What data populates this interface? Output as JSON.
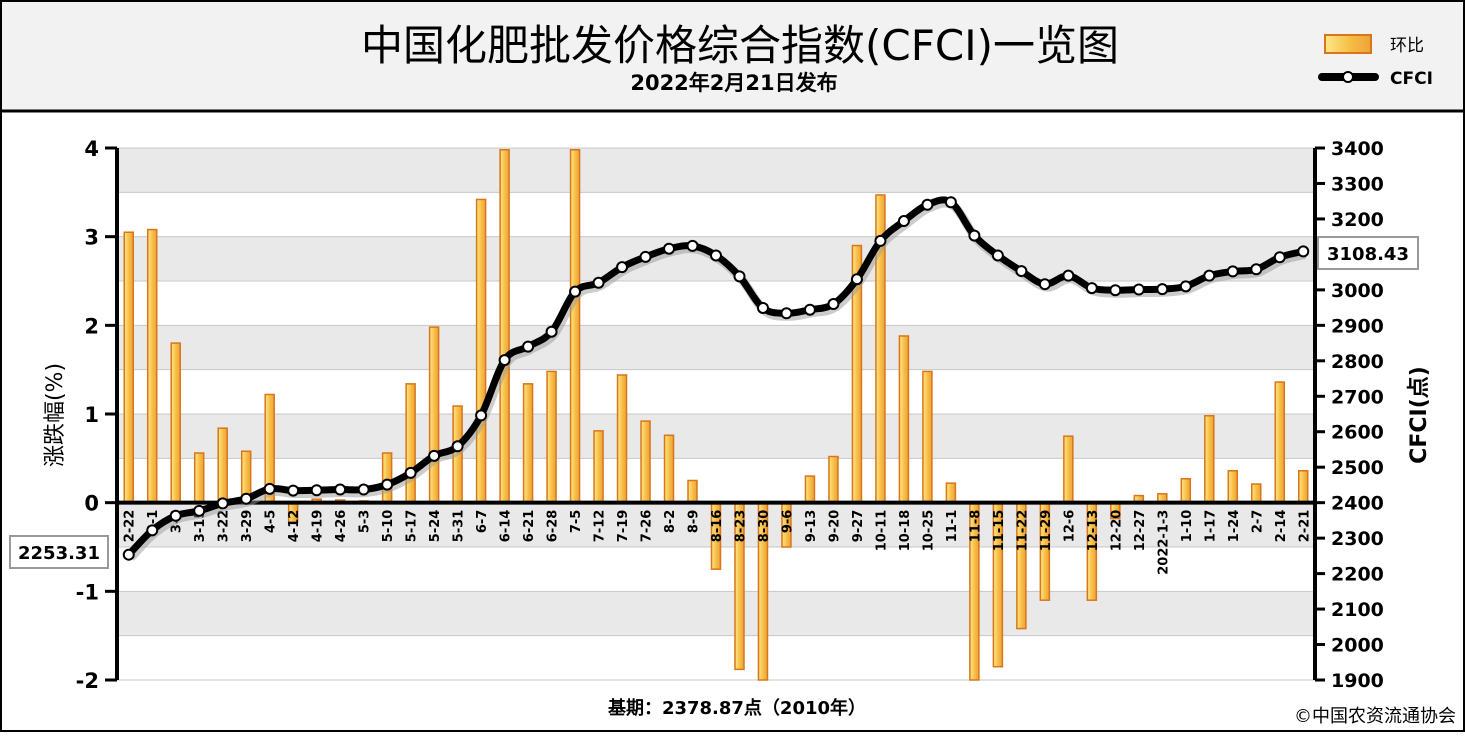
{
  "header": {
    "title": "中国化肥批发价格综合指数(CFCI)一览图",
    "subtitle": "2022年2月21日发布"
  },
  "legend": {
    "bar_label": "环比",
    "line_label": "CFCI",
    "placement": "top-right"
  },
  "footer": {
    "base_note": "基期：2378.87点（2010年）",
    "copyright": "©中国农资流通协会"
  },
  "colors": {
    "bar_fill": "#f5b942",
    "bar_edge": "#d9751a",
    "line": "#000000",
    "plot_bg_band": "#e9e9e9",
    "header_bg": "#f2f2f2"
  },
  "chart_data": {
    "type": "bar",
    "title": "中国化肥批发价格综合指数(CFCI)一览图",
    "ylabel": "涨跌幅(%)",
    "ylabel_right": "CFCI(点)",
    "ylim": [
      -2,
      4
    ],
    "ylim_right": [
      1900,
      3400
    ],
    "yticks": [
      -2,
      -1,
      0,
      1,
      2,
      3,
      4
    ],
    "yticks_right": [
      1900,
      2000,
      2100,
      2200,
      2300,
      2400,
      2500,
      2600,
      2700,
      2800,
      2900,
      3000,
      3100,
      3200,
      3300,
      3400
    ],
    "grid": true,
    "categories": [
      "2-22",
      "3-1",
      "3-8",
      "3-15",
      "3-22",
      "3-29",
      "4-5",
      "4-12",
      "4-19",
      "4-26",
      "5-3",
      "5-10",
      "5-17",
      "5-24",
      "5-31",
      "6-7",
      "6-14",
      "6-21",
      "6-28",
      "7-5",
      "7-12",
      "7-19",
      "7-26",
      "8-2",
      "8-9",
      "8-16",
      "8-23",
      "8-30",
      "9-6",
      "9-13",
      "9-20",
      "9-27",
      "10-11",
      "10-18",
      "10-25",
      "11-1",
      "11-8",
      "11-15",
      "11-22",
      "11-29",
      "12-6",
      "12-13",
      "12-20",
      "12-27",
      "2022-1-3",
      "1-10",
      "1-17",
      "1-24",
      "2-7",
      "2-14",
      "2-21"
    ],
    "tick_labels": [
      "2-22",
      "3-1",
      "3-8",
      "3-15",
      "3-22",
      "3-29",
      "4-5",
      "4-12",
      "4-19",
      "4-26",
      "5-3",
      "5-10",
      "5-17",
      "5-24",
      "5-31",
      "6-7",
      "6-14",
      "6-21",
      "6-28",
      "7-5",
      "7-12",
      "7-19",
      "7-26",
      "8-2",
      "8-9",
      "8-16",
      "8-23",
      "8-30",
      "9-6",
      "9-13",
      "9-20",
      "9-27",
      "10-11",
      "10-18",
      "10-25",
      "11-1",
      "11-8",
      "11-15",
      "11-22",
      "11-29",
      "12-6",
      "12-13",
      "12-20",
      "12-27",
      "2022-1-3",
      "1-10",
      "1-17",
      "1-24",
      "2-7",
      "2-14",
      "2-21"
    ],
    "series": [
      {
        "name": "环比",
        "type": "bar",
        "axis": "left",
        "values": [
          3.05,
          3.08,
          1.8,
          0.56,
          0.84,
          0.58,
          1.22,
          -0.22,
          0.04,
          0.03,
          0.02,
          0.56,
          1.34,
          1.98,
          1.09,
          3.42,
          3.98,
          1.34,
          1.48,
          3.98,
          0.81,
          1.44,
          0.92,
          0.76,
          0.25,
          -0.75,
          -1.88,
          -2.0,
          -0.5,
          0.3,
          0.52,
          2.9,
          3.47,
          1.88,
          1.48,
          0.22,
          -2.0,
          -1.85,
          -1.42,
          -1.1,
          0.75,
          -1.1,
          -0.18,
          0.08,
          0.1,
          0.27,
          0.98,
          0.36,
          0.21,
          1.36,
          0.36
        ]
      },
      {
        "name": "CFCI",
        "type": "line",
        "axis": "right",
        "values": [
          2253.31,
          2322,
          2363,
          2377,
          2398,
          2411,
          2439,
          2434,
          2435,
          2437,
          2437,
          2451,
          2484,
          2532,
          2559,
          2646,
          2802,
          2840,
          2882,
          2995,
          3020,
          3064,
          3093,
          3116,
          3124,
          3097,
          3038,
          2949,
          2934,
          2944,
          2960,
          3030,
          3138,
          3194,
          3240,
          3247,
          3153,
          3097,
          3053,
          3016,
          3040,
          3005,
          2999,
          3001,
          3002,
          3010,
          3040,
          3052,
          3058,
          3092,
          3108.43
        ]
      }
    ],
    "annotations": [
      "2253.31",
      "3108.43"
    ]
  }
}
